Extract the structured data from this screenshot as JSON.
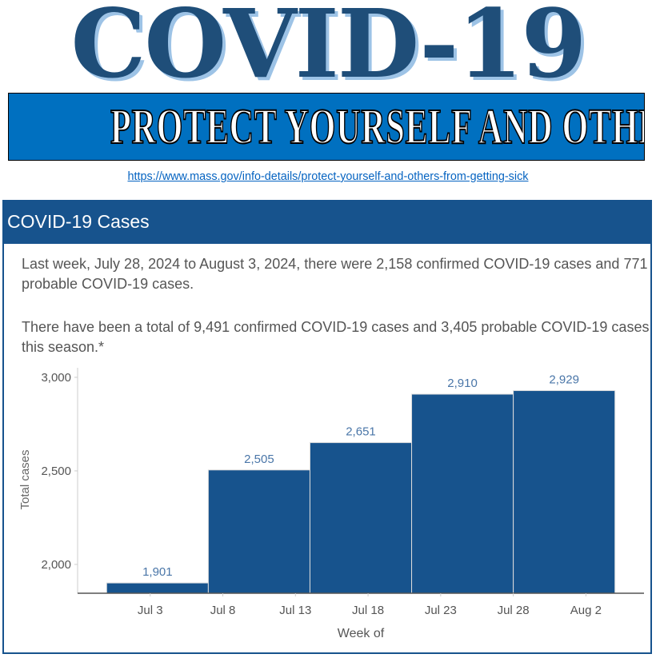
{
  "header": {
    "title": "COVID-19",
    "banner": "PROTECT YOURSELF AND OTHERS",
    "link": "https://www.mass.gov/info-details/protect-yourself-and-others-from-getting-sick"
  },
  "card": {
    "title": "COVID-19 Cases",
    "paragraph1": "Last week, July 28, 2024 to August 3, 2024, there were 2,158 confirmed COVID-19 cases and 771 probable COVID-19 cases.",
    "paragraph2": "There have been a total of 9,491 confirmed COVID-19 cases and 3,405 probable COVID-19 cases this season.*"
  },
  "colors": {
    "bar": "#17538d",
    "label": "#4a76a8",
    "header": "#17538d",
    "title": "#1f4e79",
    "banner": "#0070c0"
  },
  "chart_data": {
    "type": "bar",
    "title": "",
    "xlabel": "Week of",
    "ylabel": "Total cases",
    "bars": [
      {
        "start": "2024-06-30",
        "end": "2024-07-06",
        "value": 1901,
        "label": "1,901"
      },
      {
        "start": "2024-07-07",
        "end": "2024-07-13",
        "value": 2505,
        "label": "2,505"
      },
      {
        "start": "2024-07-14",
        "end": "2024-07-20",
        "value": 2651,
        "label": "2,651"
      },
      {
        "start": "2024-07-21",
        "end": "2024-07-27",
        "value": 2910,
        "label": "2,910"
      },
      {
        "start": "2024-07-28",
        "end": "2024-08-03",
        "value": 2929,
        "label": "2,929"
      }
    ],
    "xticks": [
      {
        "date": "2024-07-03",
        "label": "Jul 3"
      },
      {
        "date": "2024-07-08",
        "label": "Jul 8"
      },
      {
        "date": "2024-07-13",
        "label": "Jul 13"
      },
      {
        "date": "2024-07-18",
        "label": "Jul 18"
      },
      {
        "date": "2024-07-23",
        "label": "Jul 23"
      },
      {
        "date": "2024-07-28",
        "label": "Jul 28"
      },
      {
        "date": "2024-08-02",
        "label": "Aug 2"
      }
    ],
    "yticks": [
      {
        "value": 2000,
        "label": "2,000"
      },
      {
        "value": 2500,
        "label": "2,500"
      },
      {
        "value": 3000,
        "label": "3,000"
      }
    ],
    "xlim": [
      "2024-06-28",
      "2024-08-06"
    ],
    "ylim": [
      1846,
      3051
    ],
    "grid": false,
    "legend": "none"
  }
}
